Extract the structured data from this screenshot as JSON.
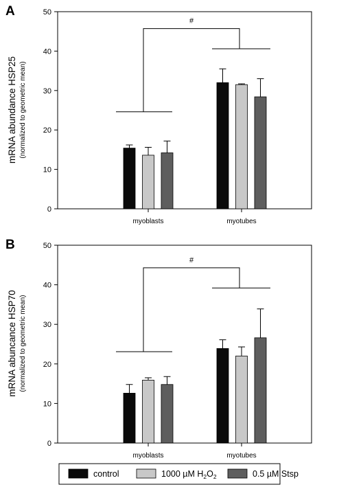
{
  "chart_data": [
    {
      "type": "bar",
      "panel": "A",
      "ylabel": "mRNA abundance HSP25",
      "ylabel_sub": "(normalized to geometric mean)",
      "ylim": [
        0,
        50
      ],
      "yticks": [
        "0",
        "10",
        "20",
        "30",
        "40",
        "50"
      ],
      "categories": [
        "myoblasts",
        "myotubes"
      ],
      "series": [
        {
          "name": "control",
          "color": "#0a0a0a",
          "values": [
            15.4,
            32.0
          ],
          "errors": [
            0.8,
            3.5
          ]
        },
        {
          "name": "1000 µM H2O2",
          "color": "#c8c8c8",
          "values": [
            13.6,
            31.5
          ],
          "errors": [
            2.0,
            0.2
          ]
        },
        {
          "name": "0.5 µM Stsp",
          "color": "#5e5e5e",
          "values": [
            14.2,
            28.4
          ],
          "errors": [
            3.0,
            4.6
          ]
        }
      ],
      "significance": {
        "label": "#",
        "bracket_levels": [
          24.6,
          40.6,
          45.7
        ]
      },
      "grid": false
    },
    {
      "type": "bar",
      "panel": "B",
      "ylabel": "mRNA abuncance HSP70",
      "ylabel_sub": "(normalized to geometric mean)",
      "ylim": [
        0,
        50
      ],
      "yticks": [
        "0",
        "10",
        "20",
        "30",
        "40",
        "50"
      ],
      "categories": [
        "myoblasts",
        "myotubes"
      ],
      "series": [
        {
          "name": "control",
          "color": "#0a0a0a",
          "values": [
            12.6,
            23.9
          ],
          "errors": [
            2.2,
            2.2
          ]
        },
        {
          "name": "1000 µM H2O2",
          "color": "#c8c8c8",
          "values": [
            15.9,
            22.0
          ],
          "errors": [
            0.6,
            2.3
          ]
        },
        {
          "name": "0.5 µM Stsp",
          "color": "#5e5e5e",
          "values": [
            14.8,
            26.6
          ],
          "errors": [
            2.0,
            7.3
          ]
        }
      ],
      "significance": {
        "label": "#",
        "bracket_levels": [
          23.1,
          39.2,
          44.3
        ]
      },
      "grid": false
    }
  ],
  "legend": {
    "placement": "bottom",
    "items": [
      {
        "label": "control",
        "color": "#0a0a0a"
      },
      {
        "label": "1000 µM H",
        "sub": "2",
        "label_tail": "O",
        "sub_tail": "2",
        "color": "#c8c8c8"
      },
      {
        "label": "0.5 µM Stsp",
        "color": "#5e5e5e"
      }
    ]
  }
}
